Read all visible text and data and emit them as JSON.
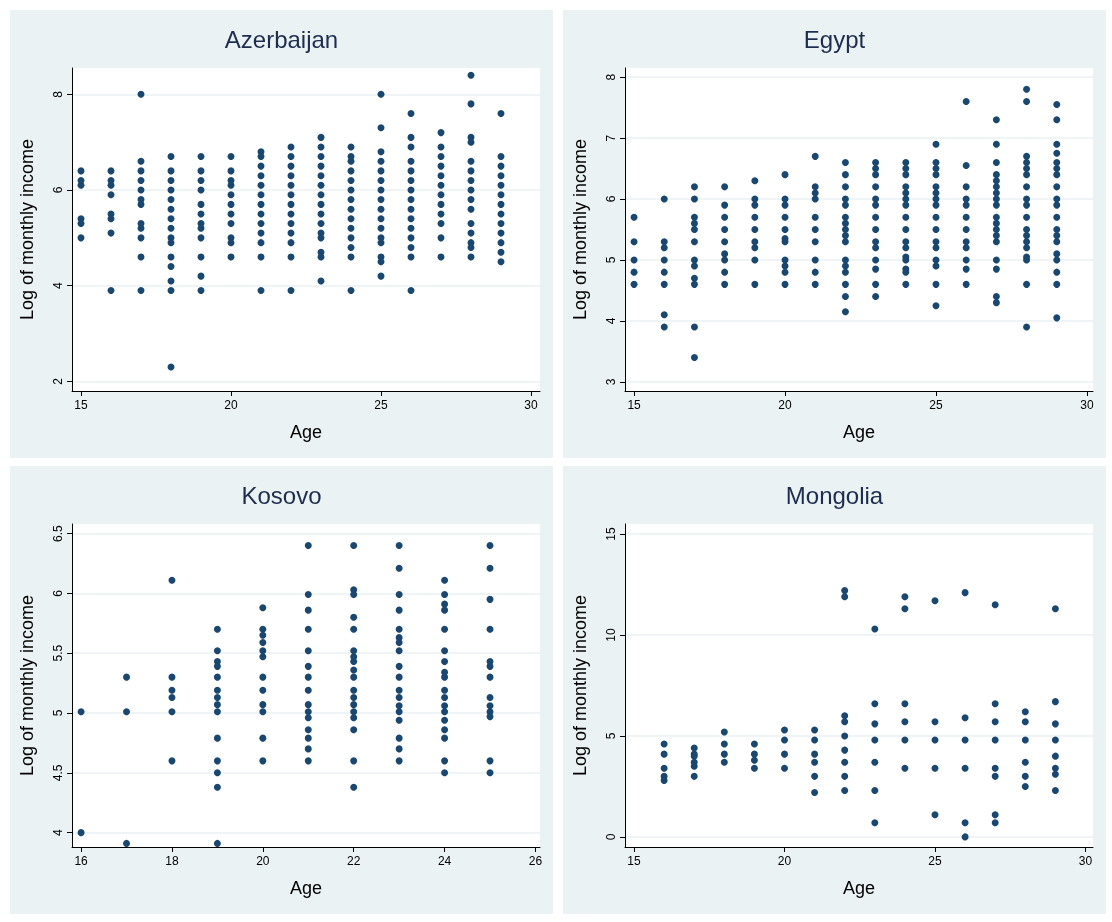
{
  "chart_data": [
    {
      "type": "scatter",
      "title": "Azerbaijan",
      "xlabel": "Age",
      "ylabel": "Log of monthly income",
      "color": "#1a476f",
      "marker": "circle",
      "grid": "y",
      "xlim": [
        14.7,
        30.3
      ],
      "ylim": [
        1.8,
        8.55
      ],
      "xticks": [
        15,
        20,
        25,
        30
      ],
      "yticks": [
        2,
        4,
        6,
        8
      ],
      "x": [
        15,
        15,
        15,
        15,
        15,
        15,
        16,
        16,
        16,
        16,
        16,
        16,
        16,
        16,
        17,
        17,
        17,
        17,
        17,
        17,
        17,
        17,
        17,
        17,
        17,
        17,
        18,
        18,
        18,
        18,
        18,
        18,
        18,
        18,
        18,
        18,
        18,
        18,
        18,
        18,
        18,
        19,
        19,
        19,
        19,
        19,
        19,
        19,
        19,
        19,
        19,
        19,
        19,
        20,
        20,
        20,
        20,
        20,
        20,
        20,
        20,
        20,
        20,
        20,
        21,
        21,
        21,
        21,
        21,
        21,
        21,
        21,
        21,
        21,
        21,
        21,
        21,
        22,
        22,
        22,
        22,
        22,
        22,
        22,
        22,
        22,
        22,
        22,
        22,
        22,
        23,
        23,
        23,
        23,
        23,
        23,
        23,
        23,
        23,
        23,
        23,
        23,
        23,
        23,
        23,
        24,
        24,
        24,
        24,
        24,
        24,
        24,
        24,
        24,
        24,
        24,
        24,
        24,
        24,
        25,
        25,
        25,
        25,
        25,
        25,
        25,
        25,
        25,
        25,
        25,
        25,
        25,
        25,
        25,
        25,
        26,
        26,
        26,
        26,
        26,
        26,
        26,
        26,
        26,
        26,
        26,
        26,
        26,
        26,
        26,
        27,
        27,
        27,
        27,
        27,
        27,
        27,
        27,
        27,
        27,
        27,
        27,
        28,
        28,
        28,
        28,
        28,
        28,
        28,
        28,
        28,
        28,
        28,
        28,
        28,
        28,
        28,
        29,
        29,
        29,
        29,
        29,
        29,
        29,
        29,
        29,
        29,
        29,
        29,
        29
      ],
      "values": [
        6.4,
        6.2,
        6.1,
        5.4,
        5.3,
        5.0,
        6.4,
        6.2,
        6.1,
        5.9,
        5.5,
        5.4,
        5.1,
        3.9,
        8.0,
        6.6,
        6.4,
        6.2,
        6.0,
        5.8,
        5.7,
        5.3,
        5.2,
        5.0,
        4.6,
        3.9,
        6.7,
        6.4,
        6.2,
        6.0,
        5.8,
        5.6,
        5.4,
        5.2,
        5.0,
        4.9,
        4.6,
        4.4,
        4.1,
        3.9,
        2.3,
        6.7,
        6.4,
        6.2,
        6.0,
        5.7,
        5.5,
        5.3,
        5.2,
        5.0,
        4.6,
        4.2,
        3.9,
        6.7,
        6.4,
        6.2,
        6.1,
        5.9,
        5.7,
        5.5,
        5.3,
        5.0,
        4.9,
        4.6,
        6.8,
        6.7,
        6.5,
        6.3,
        6.1,
        5.9,
        5.7,
        5.5,
        5.3,
        5.1,
        4.9,
        4.6,
        3.9,
        6.9,
        6.7,
        6.5,
        6.3,
        6.1,
        5.9,
        5.7,
        5.5,
        5.3,
        5.1,
        4.9,
        4.6,
        3.9,
        7.1,
        6.9,
        6.7,
        6.5,
        6.3,
        6.1,
        5.9,
        5.7,
        5.5,
        5.3,
        5.1,
        5.0,
        4.7,
        4.6,
        4.1,
        6.9,
        6.7,
        6.6,
        6.4,
        6.2,
        6.0,
        5.8,
        5.6,
        5.4,
        5.2,
        5.0,
        4.8,
        4.6,
        3.9,
        8.0,
        7.3,
        6.8,
        6.6,
        6.4,
        6.2,
        6.0,
        5.8,
        5.6,
        5.4,
        5.2,
        5.0,
        4.9,
        4.6,
        4.5,
        4.2,
        7.6,
        7.1,
        6.9,
        6.6,
        6.4,
        6.2,
        6.0,
        5.8,
        5.6,
        5.4,
        5.2,
        5.0,
        4.8,
        4.6,
        3.9,
        7.2,
        6.9,
        6.7,
        6.5,
        6.3,
        6.1,
        5.9,
        5.7,
        5.5,
        5.3,
        5.0,
        4.6,
        8.4,
        7.8,
        7.1,
        7.0,
        6.6,
        6.4,
        6.2,
        6.0,
        5.8,
        5.6,
        5.3,
        5.1,
        4.9,
        4.8,
        4.6,
        7.6,
        6.7,
        6.5,
        6.3,
        6.1,
        5.9,
        5.7,
        5.5,
        5.3,
        5.1,
        4.9,
        4.7,
        4.5
      ]
    },
    {
      "type": "scatter",
      "title": "Egypt",
      "xlabel": "Age",
      "ylabel": "Log of monthly income",
      "color": "#1a476f",
      "marker": "circle",
      "grid": "y",
      "xlim": [
        14.7,
        30.2
      ],
      "ylim": [
        2.85,
        8.15
      ],
      "xticks": [
        15,
        20,
        25,
        30
      ],
      "yticks": [
        3,
        4,
        5,
        6,
        7,
        8
      ],
      "x": [
        15,
        15,
        15,
        15,
        15,
        16,
        16,
        16,
        16,
        16,
        16,
        16,
        16,
        17,
        17,
        17,
        17,
        17,
        17,
        17,
        17,
        17,
        17,
        17,
        17,
        18,
        18,
        18,
        18,
        18,
        18,
        18,
        18,
        18,
        19,
        19,
        19,
        19,
        19,
        19,
        19,
        19,
        19,
        20,
        20,
        20,
        20,
        20,
        20,
        20,
        20,
        20,
        20,
        20,
        21,
        21,
        21,
        21,
        21,
        21,
        21,
        21,
        21,
        21,
        22,
        22,
        22,
        22,
        22,
        22,
        22,
        22,
        22,
        22,
        22,
        22,
        22,
        22,
        22,
        22,
        23,
        23,
        23,
        23,
        23,
        23,
        23,
        23,
        23,
        23,
        23,
        23,
        23,
        23,
        24,
        24,
        24,
        24,
        24,
        24,
        24,
        24,
        24,
        24,
        24,
        24,
        24,
        24,
        24,
        24,
        25,
        25,
        25,
        25,
        25,
        25,
        25,
        25,
        25,
        25,
        25,
        25,
        25,
        25,
        25,
        25,
        26,
        26,
        26,
        26,
        26,
        26,
        26,
        26,
        26,
        26,
        26,
        26,
        27,
        27,
        27,
        27,
        27,
        27,
        27,
        27,
        27,
        27,
        27,
        27,
        27,
        27,
        27,
        27,
        27,
        27,
        28,
        28,
        28,
        28,
        28,
        28,
        28,
        28,
        28,
        28,
        28,
        28,
        28,
        28,
        28,
        28,
        28,
        28,
        29,
        29,
        29,
        29,
        29,
        29,
        29,
        29,
        29,
        29,
        29,
        29,
        29,
        29,
        29,
        29,
        29,
        29,
        29
      ],
      "values": [
        5.7,
        5.3,
        5.0,
        4.8,
        4.6,
        6.0,
        5.3,
        5.2,
        5.0,
        4.8,
        4.6,
        4.1,
        3.9,
        6.2,
        6.0,
        5.7,
        5.6,
        5.5,
        5.3,
        5.0,
        4.9,
        4.7,
        4.6,
        3.9,
        3.4,
        6.2,
        5.9,
        5.7,
        5.5,
        5.3,
        5.1,
        5.0,
        4.8,
        4.6,
        6.3,
        6.0,
        5.9,
        5.7,
        5.5,
        5.3,
        5.2,
        5.0,
        4.6,
        6.4,
        6.0,
        5.9,
        5.7,
        5.5,
        5.35,
        5.3,
        5.0,
        4.9,
        4.8,
        4.6,
        6.7,
        6.2,
        6.1,
        6.0,
        5.7,
        5.5,
        5.3,
        5.0,
        4.8,
        4.6,
        6.6,
        6.4,
        6.2,
        6.0,
        5.9,
        5.7,
        5.6,
        5.5,
        5.4,
        5.3,
        5.0,
        4.9,
        4.8,
        4.6,
        4.4,
        4.15,
        6.6,
        6.5,
        6.4,
        6.2,
        6.0,
        5.9,
        5.7,
        5.5,
        5.3,
        5.2,
        5.0,
        4.85,
        4.6,
        4.4,
        6.6,
        6.5,
        6.4,
        6.2,
        6.1,
        6.0,
        5.9,
        5.7,
        5.5,
        5.3,
        5.2,
        5.05,
        5.0,
        4.85,
        4.8,
        4.6,
        6.9,
        6.6,
        6.5,
        6.4,
        6.2,
        6.1,
        6.0,
        5.9,
        5.7,
        5.5,
        5.3,
        5.2,
        5.0,
        4.9,
        4.6,
        4.25,
        7.6,
        6.55,
        6.2,
        6.0,
        5.9,
        5.7,
        5.5,
        5.3,
        5.2,
        5.0,
        4.85,
        4.6,
        7.3,
        6.9,
        6.6,
        6.4,
        6.3,
        6.2,
        6.1,
        6.0,
        5.9,
        5.7,
        5.6,
        5.5,
        5.4,
        5.3,
        5.0,
        4.85,
        4.4,
        4.3,
        7.8,
        7.6,
        6.7,
        6.6,
        6.5,
        6.4,
        6.2,
        6.0,
        5.9,
        5.7,
        5.5,
        5.4,
        5.3,
        5.2,
        5.05,
        5.0,
        4.6,
        3.9,
        7.55,
        7.3,
        6.9,
        6.75,
        6.6,
        6.5,
        6.4,
        6.2,
        6.0,
        5.9,
        5.7,
        5.5,
        5.4,
        5.3,
        5.1,
        5.0,
        4.8,
        4.6,
        4.05
      ]
    },
    {
      "type": "scatter",
      "title": "Kosovo",
      "xlabel": "Age",
      "ylabel": "Log of monthly income",
      "color": "#1a476f",
      "marker": "circle",
      "grid": "y",
      "xlim": [
        15.8,
        26.1
      ],
      "ylim": [
        3.88,
        6.58
      ],
      "xticks": [
        16,
        18,
        20,
        22,
        24,
        26
      ],
      "yticks": [
        4,
        4.5,
        5,
        5.5,
        6,
        6.5
      ],
      "x": [
        16,
        16,
        17,
        17,
        17,
        18,
        18,
        18,
        18,
        18,
        18,
        19,
        19,
        19,
        19,
        19,
        19,
        19,
        19,
        19,
        19,
        19,
        19,
        19,
        19,
        20,
        20,
        20,
        20,
        20,
        20,
        20,
        20,
        20,
        20,
        20,
        20,
        21,
        21,
        21,
        21,
        21,
        21,
        21,
        21,
        21,
        21,
        21,
        21,
        21,
        21,
        21,
        22,
        22,
        22,
        22,
        22,
        22,
        22,
        22,
        22,
        22,
        22,
        22,
        22,
        22,
        22,
        22,
        22,
        22,
        23,
        23,
        23,
        23,
        23,
        23,
        23,
        23,
        23,
        23,
        23,
        23,
        23,
        23,
        23,
        23,
        23,
        23,
        24,
        24,
        24,
        24,
        24,
        24,
        24,
        24,
        24,
        24,
        24,
        24,
        24,
        24,
        24,
        24,
        24,
        24,
        25,
        25,
        25,
        25,
        25,
        25,
        25,
        25,
        25,
        25,
        25,
        25,
        25
      ],
      "values": [
        5.01,
        4.0,
        5.3,
        5.01,
        3.91,
        6.11,
        5.3,
        5.19,
        5.13,
        5.01,
        4.6,
        5.7,
        5.52,
        5.43,
        5.39,
        5.3,
        5.19,
        5.13,
        5.07,
        5.01,
        4.79,
        4.6,
        4.5,
        4.38,
        3.91,
        5.88,
        5.7,
        5.65,
        5.59,
        5.52,
        5.47,
        5.3,
        5.19,
        5.07,
        5.01,
        4.79,
        4.6,
        6.4,
        5.99,
        5.86,
        5.7,
        5.52,
        5.39,
        5.3,
        5.19,
        5.07,
        5.01,
        4.96,
        4.86,
        4.79,
        4.7,
        4.6,
        6.4,
        6.03,
        5.99,
        5.8,
        5.7,
        5.52,
        5.47,
        5.43,
        5.36,
        5.3,
        5.19,
        5.13,
        5.07,
        5.01,
        4.96,
        4.86,
        4.6,
        4.38,
        6.4,
        6.21,
        5.99,
        5.86,
        5.7,
        5.63,
        5.59,
        5.52,
        5.39,
        5.3,
        5.19,
        5.13,
        5.06,
        5.01,
        4.94,
        4.79,
        4.7,
        4.6,
        6.11,
        5.99,
        5.91,
        5.86,
        5.7,
        5.52,
        5.43,
        5.34,
        5.3,
        5.19,
        5.13,
        5.06,
        5.01,
        4.94,
        4.86,
        4.79,
        4.6,
        4.5,
        6.4,
        6.21,
        5.95,
        5.7,
        5.43,
        5.39,
        5.3,
        5.13,
        5.06,
        5.01,
        4.97,
        4.6,
        4.5
      ]
    },
    {
      "type": "scatter",
      "title": "Mongolia",
      "xlabel": "Age",
      "ylabel": "Log of monthly income",
      "color": "#1a476f",
      "marker": "circle",
      "grid": "y",
      "xlim": [
        14.7,
        30.25
      ],
      "ylim": [
        -0.5,
        15.5
      ],
      "xticks": [
        15,
        20,
        25,
        30
      ],
      "yticks": [
        0,
        5,
        10,
        15
      ],
      "x": [
        16,
        16,
        16,
        16,
        16,
        17,
        17,
        17,
        17,
        17,
        17,
        18,
        18,
        18,
        18,
        19,
        19,
        19,
        19,
        20,
        20,
        20,
        20,
        21,
        21,
        21,
        21,
        21,
        21,
        22,
        22,
        22,
        22,
        22,
        22,
        22,
        22,
        22,
        23,
        23,
        23,
        23,
        23,
        23,
        23,
        24,
        24,
        24,
        24,
        24,
        24,
        25,
        25,
        25,
        25,
        25,
        26,
        26,
        26,
        26,
        26,
        26,
        27,
        27,
        27,
        27,
        27,
        27,
        27,
        27,
        28,
        28,
        28,
        28,
        28,
        28,
        29,
        29,
        29,
        29,
        29,
        29,
        29,
        29
      ],
      "values": [
        4.6,
        4.1,
        3.4,
        3.0,
        2.8,
        4.4,
        4.1,
        4.0,
        3.7,
        3.0,
        3.5,
        5.2,
        4.6,
        4.1,
        3.7,
        4.6,
        4.1,
        3.4,
        3.8,
        5.3,
        4.8,
        4.1,
        3.4,
        5.3,
        4.8,
        4.1,
        3.7,
        3.0,
        2.2,
        12.2,
        11.9,
        6.0,
        5.7,
        5.0,
        4.3,
        3.7,
        3.0,
        2.3,
        10.3,
        6.6,
        5.6,
        4.8,
        3.7,
        2.3,
        0.7,
        11.9,
        11.3,
        6.6,
        5.7,
        4.8,
        3.4,
        11.7,
        5.7,
        4.8,
        3.4,
        1.1,
        12.1,
        5.9,
        4.8,
        3.4,
        0.7,
        0.0,
        11.5,
        6.6,
        5.7,
        4.8,
        3.4,
        3.0,
        1.1,
        0.7,
        6.2,
        5.7,
        4.8,
        3.7,
        3.0,
        2.5,
        11.3,
        6.7,
        5.6,
        4.8,
        4.0,
        3.4,
        3.1,
        2.3
      ]
    }
  ]
}
